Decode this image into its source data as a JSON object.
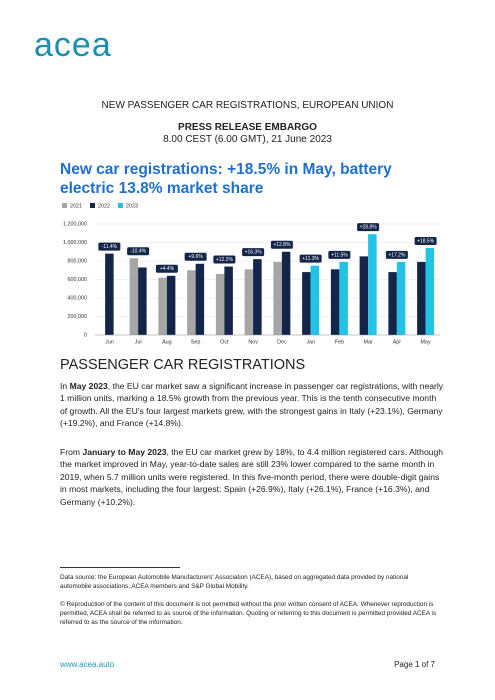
{
  "logo": "acea",
  "header": {
    "line": "NEW PASSENGER CAR REGISTRATIONS, EUROPEAN UNION",
    "embargo": "PRESS RELEASE EMBARGO",
    "time": "8.00 CEST (6.00 GMT), 21 June 2023"
  },
  "title": "New car registrations: +18.5% in May, battery electric 13.8% market share",
  "chart_data": {
    "type": "bar",
    "categories": [
      "Jun",
      "Jul",
      "Aug",
      "Sep",
      "Oct",
      "Nov",
      "Dec",
      "Jan",
      "Feb",
      "Mar",
      "Apr",
      "May"
    ],
    "series": [
      {
        "name": "2021",
        "color": "#a6a6a6",
        "values": [
          null,
          830000,
          620000,
          700000,
          660000,
          710000,
          790000,
          null,
          null,
          null,
          null,
          null
        ]
      },
      {
        "name": "2022",
        "color": "#14254a",
        "values": [
          880000,
          730000,
          640000,
          770000,
          740000,
          820000,
          900000,
          680000,
          710000,
          850000,
          680000,
          790000
        ]
      },
      {
        "name": "2023",
        "color": "#22c3e6",
        "values": [
          null,
          null,
          null,
          null,
          null,
          null,
          null,
          750000,
          790000,
          1090000,
          790000,
          940000
        ]
      }
    ],
    "annotations": [
      "-11.4%",
      "-10.4%",
      "+4.4%",
      "+9.6%",
      "+12.2%",
      "+16.3%",
      "+12.8%",
      "+11.3%",
      "+11.5%",
      "+28.8%",
      "+17.2%",
      "+18.5%"
    ],
    "ylim": [
      0,
      1200000
    ],
    "yticks": [
      0,
      {
        "value": 200000,
        "label": "200,000"
      },
      {
        "value": 400000,
        "label": "400,000"
      },
      {
        "value": 600000,
        "label": "600,000"
      },
      {
        "value": 800000,
        "label": "800,000"
      },
      {
        "value": 1000000,
        "label": "1,000,000"
      },
      {
        "value": 1200000,
        "label": "1,200,000"
      }
    ],
    "grid": true,
    "legend": "top"
  },
  "section_heading": "PASSENGER CAR REGISTRATIONS",
  "paragraphs": [
    [
      "In ",
      "May 2023",
      ", the EU car market saw a significant increase in passenger car registrations, with nearly 1 million units, marking a 18.5% growth from the previous year. This is the tenth consecutive month of growth. All the EU's four largest markets grew, with the strongest gains in Italy (+23.1%), Germany (+19.2%), and France (+14.8%)."
    ],
    [
      "From ",
      "January to May 2023",
      ", the EU car market grew by 18%, to 4.4 million registered cars. Although the market improved in May, year-to-date sales are still 23% lower compared to the same month in 2019, when 5.7 million units were registered. In this five-month period, there were double-digit gains in most markets, including the four largest: Spain (+26.9%), Italy (+26.1%), France (+16.3%), and Germany (+10.2%)."
    ]
  ],
  "footnotes": [
    "Data source: the European Automobile Manufacturers' Association (ACEA), based on aggregated data provided by national automobile associations, ACEA members and S&P Global Mobility.",
    "© Reproduction of the content of this document is not permitted without the prior written consent of ACEA. Whenever reproduction is permitted, ACEA shall be referred to as source of the information. Quoting or referring to this document is permitted provided ACEA is referred to as the source of the information."
  ],
  "footer": {
    "url": "www.acea.auto",
    "page": "Page 1 of 7"
  }
}
